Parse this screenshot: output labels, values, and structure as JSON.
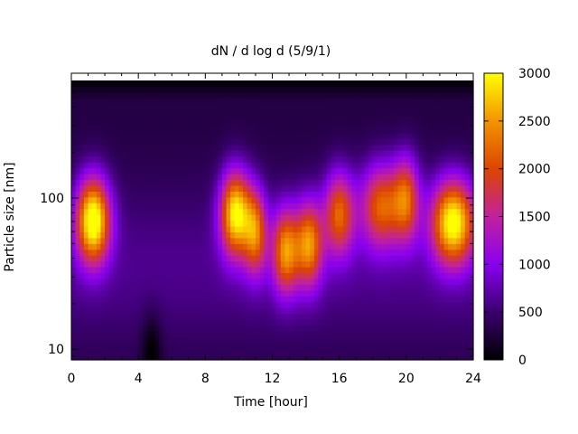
{
  "chart_data": {
    "type": "heatmap",
    "title": "dN / d log d (5/9/1)",
    "xlabel": "Time [hour]",
    "ylabel": "Particle size [nm]",
    "xlim": [
      0,
      24
    ],
    "ylim": [
      8.5,
      600
    ],
    "y_scale": "log",
    "x_ticks": [
      "0",
      "4",
      "8",
      "12",
      "16",
      "20",
      "24"
    ],
    "y_ticks": [
      "10",
      "100"
    ],
    "colorbar": {
      "range": [
        0,
        3000
      ],
      "ticks": [
        "0",
        "500",
        "1000",
        "1500",
        "2000",
        "2500",
        "3000"
      ],
      "palette": [
        "#000000",
        "#3a006e",
        "#8a00f0",
        "#c2219e",
        "#dc4500",
        "#f29400",
        "#ffff00"
      ]
    },
    "modes": [
      {
        "t": 1.3,
        "width": 1.0,
        "peak_nm": 72,
        "amplitude": 2750
      },
      {
        "t": 9.8,
        "width": 0.9,
        "peak_nm": 80,
        "amplitude": 2500
      },
      {
        "t": 11.0,
        "width": 0.7,
        "peak_nm": 60,
        "amplitude": 1700
      },
      {
        "t": 12.8,
        "width": 0.8,
        "peak_nm": 45,
        "amplitude": 1900
      },
      {
        "t": 14.2,
        "width": 0.8,
        "peak_nm": 50,
        "amplitude": 1900
      },
      {
        "t": 16.0,
        "width": 0.9,
        "peak_nm": 80,
        "amplitude": 1700
      },
      {
        "t": 18.5,
        "width": 1.2,
        "peak_nm": 90,
        "amplitude": 1700
      },
      {
        "t": 20.0,
        "width": 0.8,
        "peak_nm": 100,
        "amplitude": 1600
      },
      {
        "t": 22.8,
        "width": 1.3,
        "peak_nm": 70,
        "amplitude": 2600
      }
    ]
  }
}
